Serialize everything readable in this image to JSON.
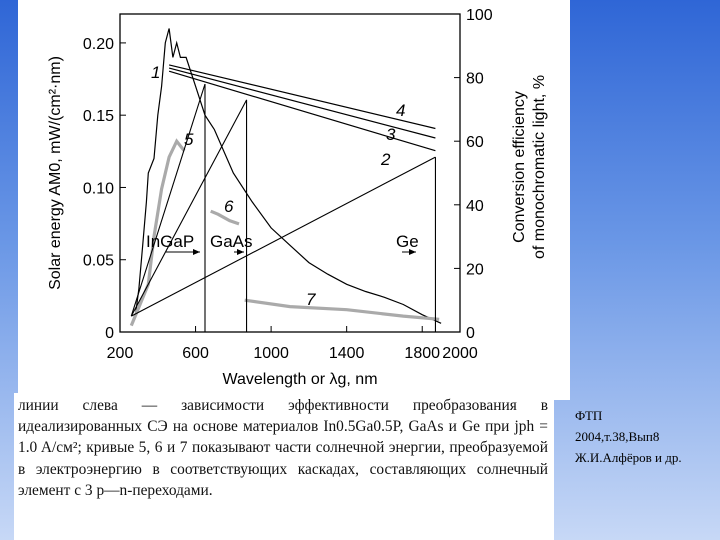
{
  "chart_data": {
    "type": "line",
    "xlabel": "Wavelength or λg, nm",
    "ylabel_left": "Solar energy AM0, mW/(cm²·nm)",
    "ylabel_right": "Conversion efficiency of monochromatic light, %",
    "xlim": [
      200,
      2000
    ],
    "ylim_left": [
      0,
      0.22
    ],
    "ylim_right": [
      0,
      100
    ],
    "x_ticks": [
      "200",
      "600",
      "1000",
      "1400",
      "1800",
      "2000"
    ],
    "y_ticks_left": [
      "0",
      "0.05",
      "0.10",
      "0.15",
      "0.20"
    ],
    "y_ticks_right": [
      "0",
      "20",
      "40",
      "60",
      "80",
      "100"
    ],
    "series": [
      {
        "name": "1",
        "axis": "left",
        "x": [
          280,
          300,
          320,
          340,
          350,
          380,
          400,
          420,
          440,
          460,
          480,
          500,
          520,
          550,
          600,
          650,
          700,
          800,
          900,
          1000,
          1100,
          1200,
          1300,
          1400,
          1500,
          1600,
          1700,
          1800,
          1900
        ],
        "y": [
          0.01,
          0.03,
          0.06,
          0.09,
          0.11,
          0.12,
          0.15,
          0.17,
          0.2,
          0.21,
          0.19,
          0.2,
          0.19,
          0.19,
          0.17,
          0.15,
          0.14,
          0.11,
          0.09,
          0.072,
          0.06,
          0.048,
          0.04,
          0.033,
          0.028,
          0.024,
          0.019,
          0.012,
          0.006
        ]
      },
      {
        "name": "2",
        "axis": "right",
        "x": [
          460,
          1870
        ],
        "y": [
          82,
          57
        ]
      },
      {
        "name": "3",
        "axis": "right",
        "x": [
          460,
          1870
        ],
        "y": [
          83,
          61
        ]
      },
      {
        "name": "4",
        "axis": "right",
        "x": [
          460,
          1870
        ],
        "y": [
          84,
          64
        ]
      },
      {
        "name": "5",
        "axis": "right",
        "x": [
          260,
          350,
          380,
          420,
          460,
          500,
          540
        ],
        "y": [
          2,
          15,
          30,
          45,
          55,
          60,
          57
        ]
      },
      {
        "name": "6",
        "axis": "right",
        "x": [
          680,
          720,
          780,
          830
        ],
        "y": [
          38,
          37,
          35,
          34
        ]
      },
      {
        "name": "7",
        "axis": "right",
        "x": [
          860,
          1100,
          1400,
          1700,
          1890
        ],
        "y": [
          10,
          8,
          7,
          5,
          4
        ]
      }
    ],
    "cascade_lines": [
      {
        "label": "InGaP",
        "x": [
          260,
          650
        ],
        "y": [
          5,
          78
        ],
        "lambda_g": 650
      },
      {
        "label": "GaAs",
        "x": [
          260,
          870
        ],
        "y": [
          5,
          73
        ],
        "lambda_g": 870
      },
      {
        "label": "Ge",
        "x": [
          260,
          1870
        ],
        "y": [
          5,
          55
        ],
        "lambda_g": 1870
      }
    ],
    "annotations": [
      "InGaP",
      "GaAs",
      "Ge",
      "1",
      "2",
      "3",
      "4",
      "5",
      "6",
      "7"
    ],
    "grid": false
  },
  "caption": {
    "text": "линии слева — зависимости эффективности преобразования в идеализированных СЭ на основе материалов In0.5Ga0.5P, GaAs и Ge при jph = 1.0 A/см²; кривые 5, 6 и 7 показывают части солнечной энергии, преобразуемой в электроэнергию в соответствующих каскадах, составляющих солнечный элемент с 3 p—n-переходами."
  },
  "source": {
    "line1": "ФТП",
    "line2": "2004,т.38,Вып8",
    "line3": "Ж.И.Алфёров и др."
  }
}
